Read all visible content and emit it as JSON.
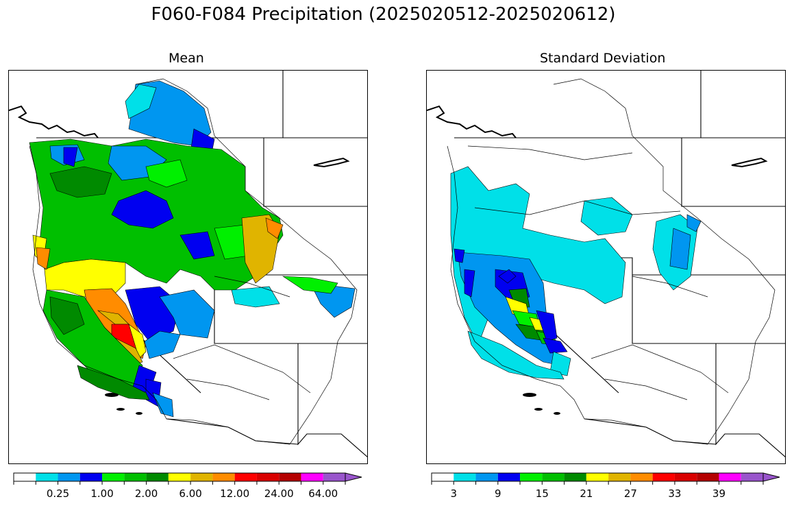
{
  "figure": {
    "title": "F060-F084 Precipitation (2025020512-2025020612)"
  },
  "panels": [
    {
      "id": "mean",
      "title": "Mean",
      "colorbar": {
        "colors": [
          "#ffffff",
          "#00e0e8",
          "#0096f0",
          "#0000f0",
          "#00f000",
          "#00bf00",
          "#008a00",
          "#ffff00",
          "#e0b400",
          "#ff8c00",
          "#ff0000",
          "#d90000",
          "#b40000",
          "#ff00ff",
          "#9955cc"
        ],
        "tick_labels": [
          "0.25",
          "1.00",
          "2.00",
          "6.00",
          "12.00",
          "24.00",
          "64.00"
        ],
        "label_boundaries": [
          2,
          4,
          6,
          8,
          10,
          12,
          14
        ],
        "extend": "max"
      }
    },
    {
      "id": "stddev",
      "title": "Standard Deviation",
      "colorbar": {
        "colors": [
          "#ffffff",
          "#00e0e8",
          "#0096f0",
          "#0000f0",
          "#00f000",
          "#00bf00",
          "#008a00",
          "#ffff00",
          "#e0b400",
          "#ff8c00",
          "#ff0000",
          "#d90000",
          "#b40000",
          "#ff00ff",
          "#9955cc"
        ],
        "tick_labels": [
          "3",
          "9",
          "15",
          "21",
          "27",
          "33",
          "39"
        ],
        "label_boundaries": [
          1,
          3,
          5,
          7,
          9,
          11,
          13
        ],
        "extend": "max"
      }
    }
  ]
}
